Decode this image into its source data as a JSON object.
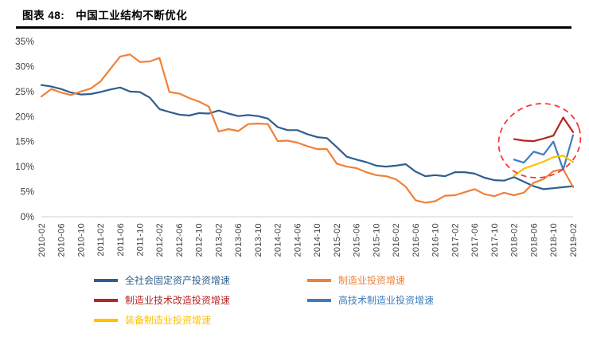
{
  "figure": {
    "label": "图表 48:",
    "title": "中国工业结构不断优化"
  },
  "chart_data": {
    "type": "line",
    "title": "中国工业结构不断优化",
    "ylim": [
      0,
      35
    ],
    "y_tick_labels": [
      "0%",
      "5%",
      "10%",
      "15%",
      "20%",
      "25%",
      "30%",
      "35%"
    ],
    "grid": false,
    "legend_position": "bottom",
    "x": [
      "2010-02",
      "2010-04",
      "2010-06",
      "2010-08",
      "2010-10",
      "2010-12",
      "2011-02",
      "2011-04",
      "2011-06",
      "2011-08",
      "2011-10",
      "2011-12",
      "2012-02",
      "2012-04",
      "2012-06",
      "2012-08",
      "2012-10",
      "2012-12",
      "2013-02",
      "2013-04",
      "2013-06",
      "2013-08",
      "2013-10",
      "2013-12",
      "2014-02",
      "2014-04",
      "2014-06",
      "2014-08",
      "2014-10",
      "2014-12",
      "2015-02",
      "2015-04",
      "2015-06",
      "2015-08",
      "2015-10",
      "2015-12",
      "2016-02",
      "2016-04",
      "2016-06",
      "2016-08",
      "2016-10",
      "2016-12",
      "2017-02",
      "2017-04",
      "2017-06",
      "2017-08",
      "2017-10",
      "2017-12",
      "2018-02",
      "2018-04",
      "2018-06",
      "2018-08",
      "2018-10",
      "2018-12",
      "2019-02"
    ],
    "x_tick_labels": [
      "2010-02",
      "2010-06",
      "2010-10",
      "2011-02",
      "2011-06",
      "2011-10",
      "2012-02",
      "2012-06",
      "2012-10",
      "2013-02",
      "2013-06",
      "2013-10",
      "2014-02",
      "2014-06",
      "2014-10",
      "2015-02",
      "2015-06",
      "2015-10",
      "2016-02",
      "2016-06",
      "2016-10",
      "2017-02",
      "2017-06",
      "2017-10",
      "2018-02",
      "2018-06",
      "2018-10",
      "2019-02"
    ],
    "series": [
      {
        "name": "全社会固定资产投资增速",
        "color": "#2f5e8f",
        "start_index": 0,
        "values": [
          26.3,
          26.0,
          25.5,
          24.8,
          24.4,
          24.5,
          24.9,
          25.4,
          25.8,
          25.0,
          24.9,
          23.8,
          21.5,
          20.9,
          20.4,
          20.2,
          20.7,
          20.6,
          21.2,
          20.6,
          20.1,
          20.3,
          20.1,
          19.6,
          17.9,
          17.3,
          17.3,
          16.5,
          15.9,
          15.7,
          13.9,
          12.0,
          11.4,
          10.9,
          10.2,
          10.0,
          10.2,
          10.5,
          9.0,
          8.1,
          8.3,
          8.1,
          8.9,
          8.9,
          8.6,
          7.8,
          7.3,
          7.2,
          7.9,
          7.0,
          6.1,
          5.5,
          5.7,
          5.9,
          6.1
        ]
      },
      {
        "name": "制造业投资增速",
        "color": "#ef8138",
        "start_index": 0,
        "values": [
          24.0,
          25.5,
          24.8,
          24.3,
          25.0,
          25.6,
          27.0,
          29.5,
          32.0,
          32.4,
          30.9,
          31.0,
          31.7,
          24.9,
          24.6,
          23.7,
          23.0,
          22.0,
          17.0,
          17.5,
          17.1,
          18.5,
          18.6,
          18.5,
          15.1,
          15.2,
          14.8,
          14.1,
          13.5,
          13.5,
          10.6,
          10.0,
          9.7,
          8.9,
          8.3,
          8.1,
          7.5,
          6.0,
          3.3,
          2.8,
          3.1,
          4.2,
          4.3,
          4.9,
          5.5,
          4.5,
          4.1,
          4.8,
          4.3,
          4.8,
          6.8,
          7.5,
          9.1,
          9.5,
          5.9
        ]
      },
      {
        "name": "制造业技术改造投资增速",
        "color": "#b42523",
        "start_index": 48,
        "values": [
          15.5,
          15.2,
          15.1,
          15.6,
          16.2,
          19.8,
          16.9
        ]
      },
      {
        "name": "高技术制造业投资增速",
        "color": "#3e7dbc",
        "start_index": 48,
        "values": [
          11.4,
          10.8,
          13.0,
          12.4,
          15.0,
          9.4,
          16.3
        ]
      },
      {
        "name": "装备制造业投资增速",
        "color": "#ffc000",
        "start_index": 48,
        "values": [
          8.2,
          9.6,
          10.3,
          11.0,
          11.9,
          12.2,
          10.9
        ]
      }
    ],
    "annotation": {
      "shape": "dashed-ellipse",
      "color": "#ff2b2b",
      "center_index": 50.6,
      "center_value": 15.2,
      "rx_index": 4.2,
      "ry_value": 7.3,
      "rotation_deg": -18
    }
  }
}
